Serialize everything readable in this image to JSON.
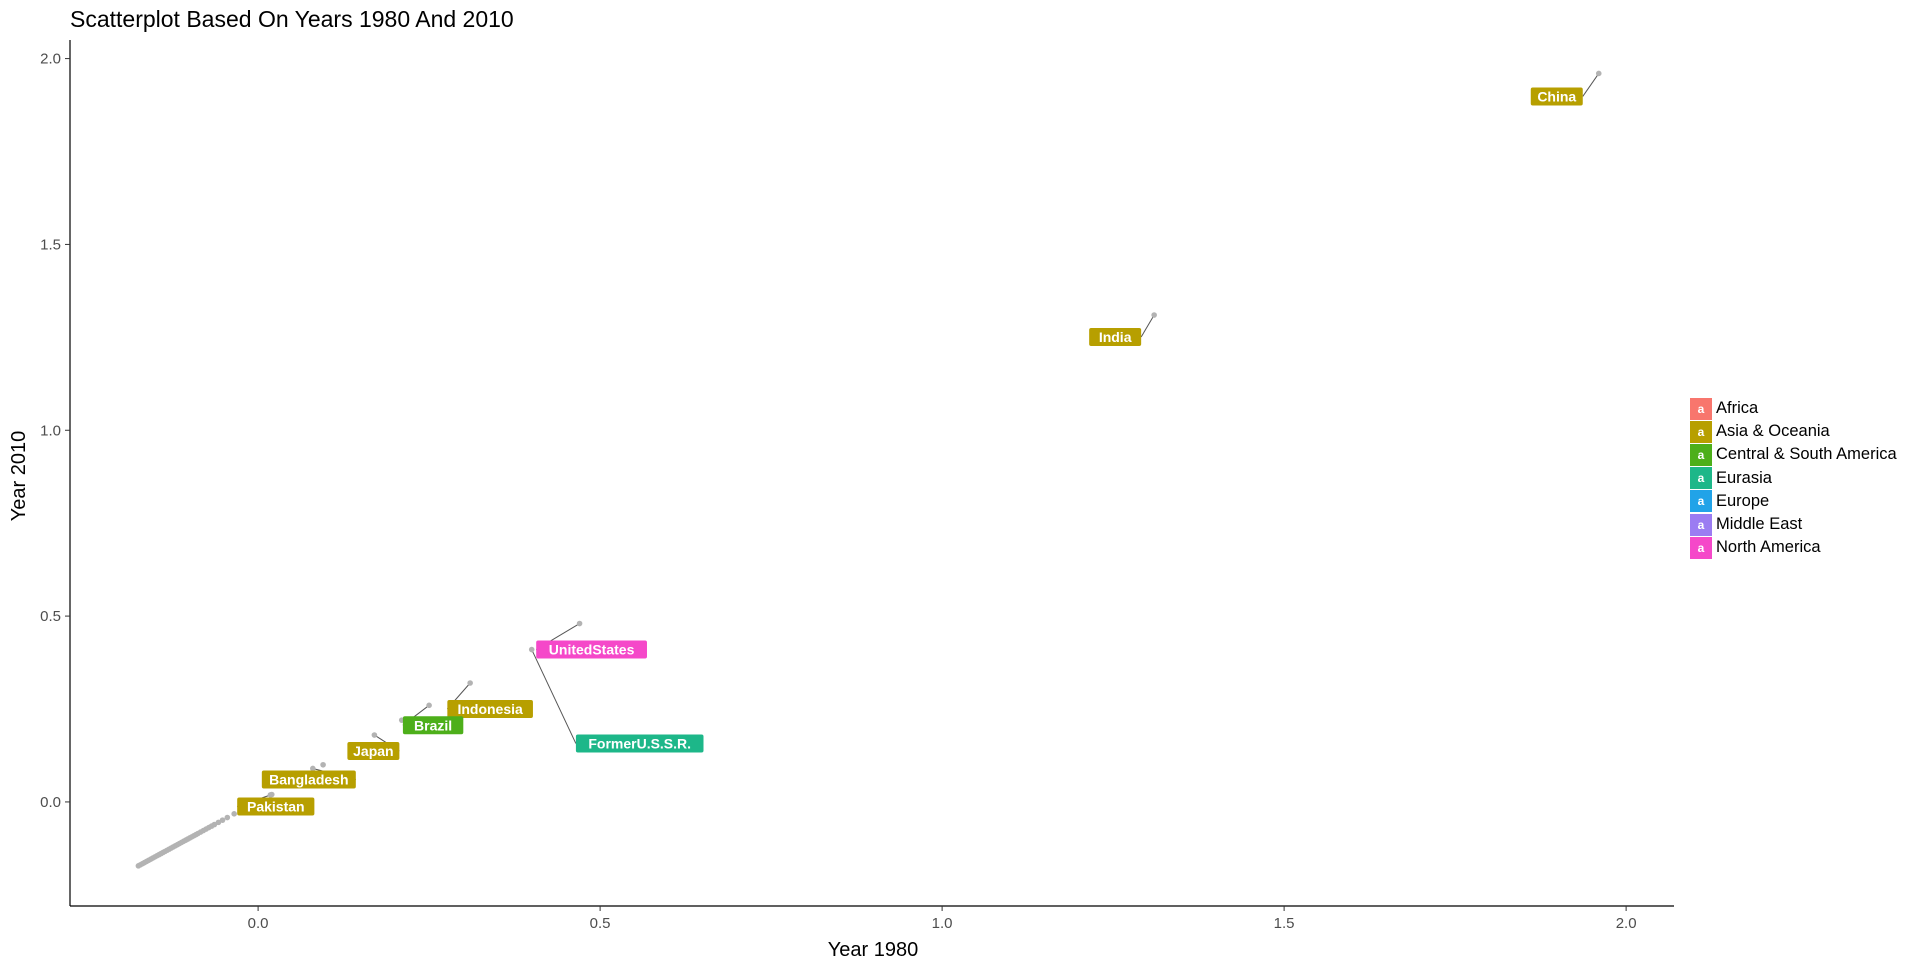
{
  "chart_data": {
    "type": "scatter",
    "title": "Scatterplot Based On Years 1980 And 2010",
    "xlabel": "Year 1980",
    "ylabel": "Year 2010",
    "xlim": [
      -0.275,
      2.07
    ],
    "ylim": [
      -0.28,
      2.05
    ],
    "x_ticks": [
      0.0,
      0.5,
      1.0,
      1.5,
      2.0
    ],
    "x_tick_labels": [
      "0.0",
      "0.5",
      "1.0",
      "1.5",
      "2.0"
    ],
    "y_ticks": [
      0.0,
      0.5,
      1.0,
      1.5,
      2.0
    ],
    "y_tick_labels": [
      "0.0",
      "0.5",
      "1.0",
      "1.5",
      "2.0"
    ],
    "grid": false,
    "point_color": "#b3b3b3",
    "legend": {
      "position": "right",
      "key_glyph": "a",
      "entries": [
        {
          "label": "Africa",
          "color": "#F8766D"
        },
        {
          "label": "Asia & Oceania",
          "color": "#B79F00"
        },
        {
          "label": "Central & South America",
          "color": "#4DAF1A"
        },
        {
          "label": "Eurasia",
          "color": "#1DB789"
        },
        {
          "label": "Europe",
          "color": "#21A3E8"
        },
        {
          "label": "Middle East",
          "color": "#9B7CF2"
        },
        {
          "label": "North America",
          "color": "#F548C9"
        }
      ]
    },
    "labeled_points": [
      {
        "name": "China",
        "region": "Asia & Oceania",
        "x": 1.96,
        "y": 1.96
      },
      {
        "name": "India",
        "region": "Asia & Oceania",
        "x": 1.31,
        "y": 1.31
      },
      {
        "name": "FormerU.S.S.R.",
        "region": "Eurasia",
        "x": 0.4,
        "y": 0.41
      },
      {
        "name": "UnitedStates",
        "region": "North America",
        "x": 0.47,
        "y": 0.48
      },
      {
        "name": "Indonesia",
        "region": "Asia & Oceania",
        "x": 0.31,
        "y": 0.32
      },
      {
        "name": "Brazil",
        "region": "Central & South America",
        "x": 0.25,
        "y": 0.26
      },
      {
        "name": "Japan",
        "region": "Asia & Oceania",
        "x": 0.17,
        "y": 0.18
      },
      {
        "name": "Bangladesh",
        "region": "Asia & Oceania",
        "x": 0.08,
        "y": 0.09
      },
      {
        "name": "Pakistan",
        "region": "Asia & Oceania",
        "x": 0.02,
        "y": 0.02
      }
    ],
    "points": [
      {
        "x": -0.175,
        "y": -0.172
      },
      {
        "x": -0.172,
        "y": -0.169
      },
      {
        "x": -0.169,
        "y": -0.166
      },
      {
        "x": -0.166,
        "y": -0.163
      },
      {
        "x": -0.163,
        "y": -0.16
      },
      {
        "x": -0.16,
        "y": -0.157
      },
      {
        "x": -0.157,
        "y": -0.154
      },
      {
        "x": -0.154,
        "y": -0.151
      },
      {
        "x": -0.151,
        "y": -0.148
      },
      {
        "x": -0.148,
        "y": -0.145
      },
      {
        "x": -0.145,
        "y": -0.142
      },
      {
        "x": -0.142,
        "y": -0.139
      },
      {
        "x": -0.139,
        "y": -0.136
      },
      {
        "x": -0.136,
        "y": -0.133
      },
      {
        "x": -0.133,
        "y": -0.13
      },
      {
        "x": -0.13,
        "y": -0.127
      },
      {
        "x": -0.127,
        "y": -0.124
      },
      {
        "x": -0.124,
        "y": -0.121
      },
      {
        "x": -0.121,
        "y": -0.118
      },
      {
        "x": -0.118,
        "y": -0.115
      },
      {
        "x": -0.115,
        "y": -0.112
      },
      {
        "x": -0.112,
        "y": -0.109
      },
      {
        "x": -0.109,
        "y": -0.106
      },
      {
        "x": -0.106,
        "y": -0.103
      },
      {
        "x": -0.103,
        "y": -0.1
      },
      {
        "x": -0.1,
        "y": -0.097
      },
      {
        "x": -0.097,
        "y": -0.094
      },
      {
        "x": -0.094,
        "y": -0.091
      },
      {
        "x": -0.091,
        "y": -0.088
      },
      {
        "x": -0.088,
        "y": -0.085
      },
      {
        "x": -0.084,
        "y": -0.081
      },
      {
        "x": -0.08,
        "y": -0.077
      },
      {
        "x": -0.076,
        "y": -0.073
      },
      {
        "x": -0.072,
        "y": -0.069
      },
      {
        "x": -0.068,
        "y": -0.065
      },
      {
        "x": -0.064,
        "y": -0.061
      },
      {
        "x": -0.058,
        "y": -0.055
      },
      {
        "x": -0.052,
        "y": -0.049
      },
      {
        "x": -0.045,
        "y": -0.042
      },
      {
        "x": -0.035,
        "y": -0.032
      },
      {
        "x": -0.025,
        "y": -0.022
      },
      {
        "x": -0.012,
        "y": -0.009
      },
      {
        "x": 0.018,
        "y": 0.019
      },
      {
        "x": 0.045,
        "y": 0.05
      },
      {
        "x": 0.095,
        "y": 0.1
      },
      {
        "x": 0.21,
        "y": 0.22
      }
    ]
  }
}
